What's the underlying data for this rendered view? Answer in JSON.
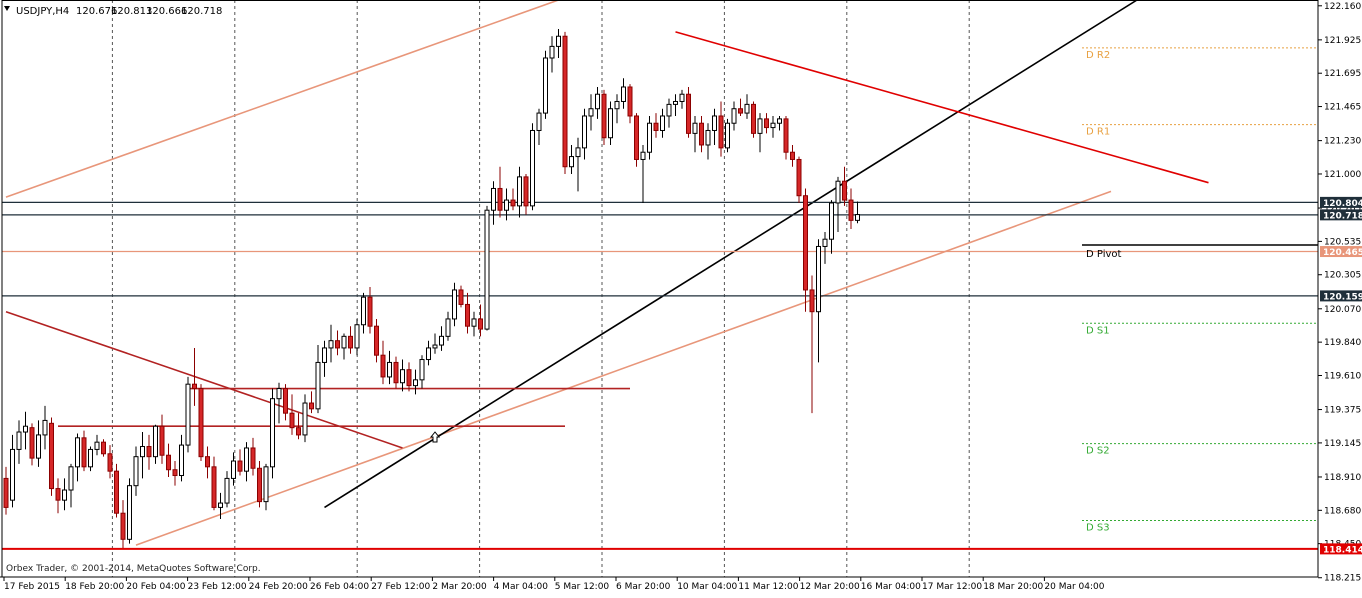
{
  "window": {
    "symbol": "USDJPY,H4",
    "ohlc": [
      "120.676",
      "120.813",
      "120.666",
      "120.718"
    ],
    "copyright": "Orbex Trader, © 2001-2014, MetaQuotes Software Corp."
  },
  "colors": {
    "bull_body": "#ffffff",
    "bull_border": "#000000",
    "bear_body": "#d62728",
    "bear_border": "#8b0000",
    "grid": "#555555",
    "salmon_line": "#e8967a",
    "dark_red_line": "#b22222",
    "resistance_red": "#e00000",
    "pivot_resistance": "#e8a040",
    "pivot_support": "#33aa33",
    "level_dark": "#1f2f3a"
  },
  "chart_data": {
    "type": "candlestick",
    "y_axis": {
      "range": [
        118.22,
        122.2
      ],
      "ticks": [
        "122.160",
        "121.925",
        "121.695",
        "121.465",
        "121.230",
        "121.000",
        "120.765",
        "120.535",
        "120.305",
        "120.070",
        "119.840",
        "119.610",
        "119.375",
        "119.145",
        "118.910",
        "118.680",
        "118.450",
        "118.215"
      ]
    },
    "x_axis": {
      "labels": [
        "17 Feb 2015",
        "18 Feb 20:00",
        "20 Feb 04:00",
        "23 Feb 12:00",
        "24 Feb 20:00",
        "26 Feb 04:00",
        "27 Feb 12:00",
        "2 Mar 20:00",
        "4 Mar 04:00",
        "5 Mar 12:00",
        "6 Mar 20:00",
        "10 Mar 04:00",
        "11 Mar 12:00",
        "12 Mar 20:00",
        "16 Mar 04:00",
        "17 Mar 12:00",
        "18 Mar 20:00",
        "20 Mar 04:00"
      ]
    },
    "candles": [
      [
        118.9,
        118.98,
        118.65,
        118.7
      ],
      [
        118.75,
        119.2,
        118.7,
        119.1
      ],
      [
        119.1,
        119.3,
        119.0,
        119.22
      ],
      [
        119.22,
        119.36,
        119.1,
        119.26
      ],
      [
        119.25,
        119.28,
        118.99,
        119.04
      ],
      [
        119.04,
        119.3,
        118.98,
        119.2
      ],
      [
        119.2,
        119.4,
        119.1,
        119.3
      ],
      [
        119.28,
        119.32,
        118.78,
        118.83
      ],
      [
        118.83,
        118.9,
        118.66,
        118.75
      ],
      [
        118.75,
        118.9,
        118.68,
        118.82
      ],
      [
        118.82,
        119.0,
        118.7,
        118.98
      ],
      [
        118.98,
        119.21,
        118.88,
        119.18
      ],
      [
        119.18,
        119.23,
        118.95,
        118.98
      ],
      [
        118.98,
        119.12,
        118.95,
        119.1
      ],
      [
        119.1,
        119.2,
        119.06,
        119.15
      ],
      [
        119.15,
        119.17,
        119.05,
        119.07
      ],
      [
        119.07,
        119.13,
        118.9,
        118.95
      ],
      [
        118.95,
        119.0,
        118.63,
        118.66
      ],
      [
        118.66,
        118.75,
        118.42,
        118.48
      ],
      [
        118.48,
        118.9,
        118.45,
        118.85
      ],
      [
        118.85,
        119.12,
        118.78,
        119.05
      ],
      [
        119.05,
        119.22,
        118.9,
        119.12
      ],
      [
        119.12,
        119.2,
        118.96,
        119.05
      ],
      [
        119.05,
        119.27,
        119.0,
        119.26
      ],
      [
        119.26,
        119.34,
        119.0,
        119.06
      ],
      [
        119.06,
        119.14,
        118.91,
        118.96
      ],
      [
        118.96,
        119.02,
        118.85,
        118.92
      ],
      [
        118.92,
        119.2,
        118.88,
        119.13
      ],
      [
        119.13,
        119.6,
        119.08,
        119.55
      ],
      [
        119.55,
        119.8,
        119.4,
        119.52
      ],
      [
        119.52,
        119.55,
        119.02,
        119.05
      ],
      [
        119.05,
        119.12,
        118.9,
        118.98
      ],
      [
        118.98,
        119.05,
        118.68,
        118.7
      ],
      [
        118.7,
        118.8,
        118.62,
        118.73
      ],
      [
        118.73,
        118.95,
        118.7,
        118.9
      ],
      [
        118.9,
        119.08,
        118.85,
        119.02
      ],
      [
        119.02,
        119.1,
        118.92,
        118.95
      ],
      [
        118.95,
        119.15,
        118.88,
        119.11
      ],
      [
        119.11,
        119.18,
        118.92,
        118.97
      ],
      [
        118.97,
        119.02,
        118.7,
        118.74
      ],
      [
        118.74,
        119.0,
        118.68,
        118.98
      ],
      [
        118.98,
        119.52,
        118.9,
        119.45
      ],
      [
        119.45,
        119.56,
        119.28,
        119.52
      ],
      [
        119.52,
        119.55,
        119.3,
        119.35
      ],
      [
        119.35,
        119.48,
        119.2,
        119.25
      ],
      [
        119.25,
        119.35,
        119.17,
        119.2
      ],
      [
        119.2,
        119.48,
        119.15,
        119.42
      ],
      [
        119.42,
        119.5,
        119.35,
        119.38
      ],
      [
        119.38,
        119.82,
        119.35,
        119.7
      ],
      [
        119.7,
        119.85,
        119.6,
        119.8
      ],
      [
        119.8,
        119.96,
        119.7,
        119.85
      ],
      [
        119.85,
        119.92,
        119.75,
        119.8
      ],
      [
        119.8,
        119.9,
        119.72,
        119.88
      ],
      [
        119.88,
        119.95,
        119.76,
        119.8
      ],
      [
        119.8,
        120.0,
        119.75,
        119.96
      ],
      [
        119.96,
        120.18,
        119.9,
        120.15
      ],
      [
        120.15,
        120.22,
        119.9,
        119.95
      ],
      [
        119.95,
        120.0,
        119.7,
        119.75
      ],
      [
        119.75,
        119.85,
        119.55,
        119.6
      ],
      [
        119.6,
        119.78,
        119.55,
        119.7
      ],
      [
        119.7,
        119.74,
        119.52,
        119.56
      ],
      [
        119.56,
        119.72,
        119.5,
        119.65
      ],
      [
        119.65,
        119.7,
        119.5,
        119.54
      ],
      [
        119.54,
        119.65,
        119.48,
        119.58
      ],
      [
        119.58,
        119.75,
        119.52,
        119.72
      ],
      [
        119.72,
        119.85,
        119.68,
        119.8
      ],
      [
        119.8,
        119.9,
        119.76,
        119.82
      ],
      [
        119.82,
        119.95,
        119.78,
        119.88
      ],
      [
        119.88,
        120.05,
        119.85,
        120.0
      ],
      [
        120.0,
        120.25,
        119.95,
        120.2
      ],
      [
        120.2,
        120.23,
        120.08,
        120.1
      ],
      [
        120.1,
        120.18,
        119.9,
        119.95
      ],
      [
        119.95,
        120.05,
        119.88,
        120.0
      ],
      [
        120.0,
        120.1,
        119.88,
        119.93
      ],
      [
        119.93,
        120.78,
        119.92,
        120.75
      ],
      [
        120.75,
        120.95,
        120.65,
        120.9
      ],
      [
        120.9,
        121.05,
        120.7,
        120.75
      ],
      [
        120.75,
        120.9,
        120.68,
        120.82
      ],
      [
        120.82,
        120.9,
        120.75,
        120.78
      ],
      [
        120.78,
        121.05,
        120.7,
        120.98
      ],
      [
        120.98,
        121.0,
        120.72,
        120.78
      ],
      [
        120.78,
        121.35,
        120.75,
        121.3
      ],
      [
        121.3,
        121.45,
        121.2,
        121.42
      ],
      [
        121.42,
        121.85,
        121.38,
        121.8
      ],
      [
        121.8,
        121.95,
        121.7,
        121.88
      ],
      [
        121.88,
        122.0,
        121.8,
        121.95
      ],
      [
        121.95,
        121.98,
        121.0,
        121.05
      ],
      [
        121.05,
        121.2,
        121.0,
        121.12
      ],
      [
        121.12,
        121.25,
        120.88,
        121.18
      ],
      [
        121.18,
        121.45,
        121.1,
        121.4
      ],
      [
        121.4,
        121.55,
        121.3,
        121.45
      ],
      [
        121.45,
        121.6,
        121.38,
        121.55
      ],
      [
        121.55,
        121.58,
        121.2,
        121.25
      ],
      [
        121.25,
        121.5,
        121.2,
        121.45
      ],
      [
        121.45,
        121.55,
        121.35,
        121.5
      ],
      [
        121.5,
        121.66,
        121.45,
        121.6
      ],
      [
        121.6,
        121.62,
        121.35,
        121.4
      ],
      [
        121.4,
        121.42,
        121.05,
        121.1
      ],
      [
        121.1,
        121.2,
        120.8,
        121.15
      ],
      [
        121.15,
        121.4,
        121.1,
        121.35
      ],
      [
        121.35,
        121.42,
        121.25,
        121.3
      ],
      [
        121.3,
        121.45,
        121.25,
        121.4
      ],
      [
        121.4,
        121.52,
        121.32,
        121.48
      ],
      [
        121.48,
        121.55,
        121.4,
        121.5
      ],
      [
        121.5,
        121.58,
        121.45,
        121.55
      ],
      [
        121.55,
        121.6,
        121.25,
        121.28
      ],
      [
        121.28,
        121.4,
        121.15,
        121.35
      ],
      [
        121.35,
        121.4,
        121.15,
        121.2
      ],
      [
        121.2,
        121.35,
        121.1,
        121.3
      ],
      [
        121.3,
        121.45,
        121.2,
        121.4
      ],
      [
        121.4,
        121.5,
        121.12,
        121.18
      ],
      [
        121.18,
        121.38,
        121.15,
        121.35
      ],
      [
        121.35,
        121.5,
        121.3,
        121.45
      ],
      [
        121.45,
        121.52,
        121.4,
        121.42
      ],
      [
        121.42,
        121.55,
        121.38,
        121.48
      ],
      [
        121.48,
        121.5,
        121.25,
        121.28
      ],
      [
        121.28,
        121.42,
        121.15,
        121.38
      ],
      [
        121.38,
        121.42,
        121.28,
        121.32
      ],
      [
        121.32,
        121.4,
        121.25,
        121.35
      ],
      [
        121.35,
        121.4,
        121.3,
        121.38
      ],
      [
        121.38,
        121.4,
        121.1,
        121.15
      ],
      [
        121.15,
        121.2,
        121.05,
        121.1
      ],
      [
        121.1,
        121.12,
        120.8,
        120.85
      ],
      [
        120.85,
        120.9,
        120.05,
        120.2
      ],
      [
        120.2,
        120.3,
        119.35,
        120.05
      ],
      [
        120.05,
        120.55,
        119.7,
        120.5
      ],
      [
        120.5,
        120.6,
        120.38,
        120.55
      ],
      [
        120.55,
        120.82,
        120.45,
        120.8
      ],
      [
        120.8,
        120.98,
        120.6,
        120.95
      ],
      [
        120.95,
        121.05,
        120.78,
        120.82
      ],
      [
        120.82,
        120.9,
        120.62,
        120.68
      ],
      [
        120.68,
        120.81,
        120.66,
        120.72
      ]
    ],
    "horizontal_levels": [
      {
        "label": "120.804",
        "value": 120.804,
        "tag_color": "#1f2f3a"
      },
      {
        "label": "120.718",
        "value": 120.718,
        "tag_color": "#1f2f3a"
      },
      {
        "label": "120.465",
        "value": 120.465,
        "tag_color": "#e8967a"
      },
      {
        "label": "120.159",
        "value": 120.159,
        "tag_color": "#1f2f3a"
      },
      {
        "label": "118.414",
        "value": 118.414,
        "tag_color": "#e00000"
      }
    ],
    "pivots": [
      {
        "label": "D R2",
        "value": 121.87,
        "kind": "resistance"
      },
      {
        "label": "D R1",
        "value": 121.34,
        "kind": "resistance"
      },
      {
        "label": "D Pivot",
        "value": 120.51,
        "kind": "pivot"
      },
      {
        "label": "D S1",
        "value": 119.97,
        "kind": "support"
      },
      {
        "label": "D S2",
        "value": 119.14,
        "kind": "support"
      },
      {
        "label": "D S3",
        "value": 118.61,
        "kind": "support"
      }
    ],
    "trendlines": [
      {
        "name": "upper-channel",
        "from": [
          0,
          120.84
        ],
        "to": [
          85,
          122.2
        ],
        "color": "#e8967a"
      },
      {
        "name": "lower-channel",
        "from": [
          20,
          118.44
        ],
        "to": [
          170,
          120.88
        ],
        "color": "#e8967a"
      },
      {
        "name": "black-uptrend",
        "from": [
          49,
          118.7
        ],
        "to": [
          174,
          122.2
        ],
        "color": "#000000"
      },
      {
        "name": "dark-red-downtrend",
        "from": [
          0,
          120.05
        ],
        "to": [
          61,
          119.11
        ],
        "color": "#b22222"
      },
      {
        "name": "red-resistance",
        "from": [
          103,
          121.98
        ],
        "to": [
          185,
          120.94
        ],
        "color": "#e00000"
      },
      {
        "name": "red-level-1",
        "from": [
          28,
          119.52
        ],
        "to": [
          96,
          119.52
        ],
        "color": "#b22222"
      },
      {
        "name": "red-level-2",
        "from": [
          8,
          119.26
        ],
        "to": [
          86,
          119.26
        ],
        "color": "#b22222"
      }
    ]
  }
}
